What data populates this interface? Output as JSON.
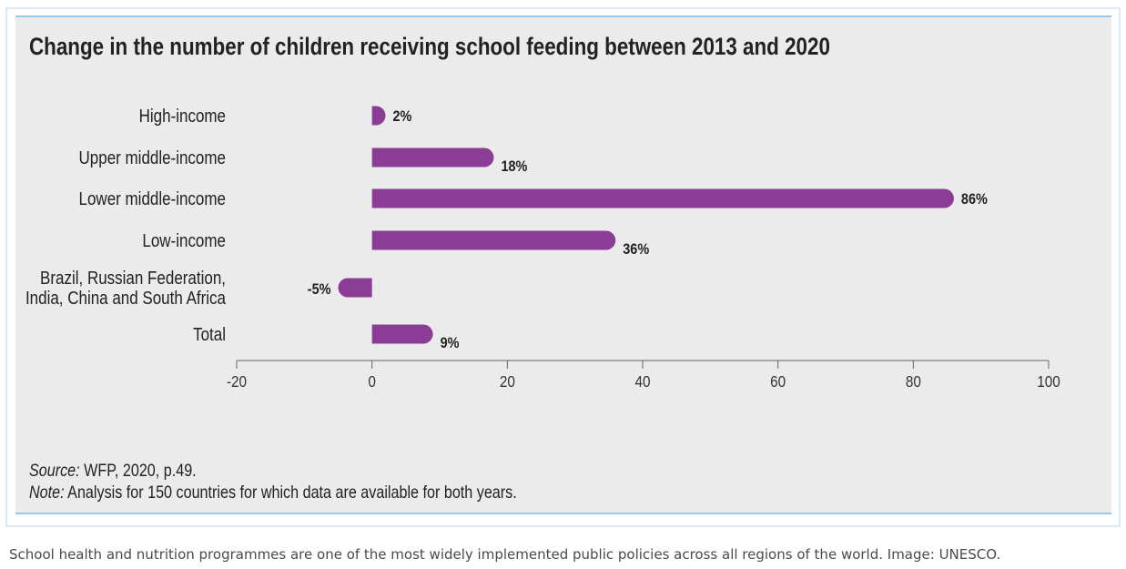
{
  "chart_data": {
    "type": "bar",
    "orientation": "horizontal",
    "title": "Change in the number of children receiving school feeding between 2013 and 2020",
    "categories": [
      [
        "High-income"
      ],
      [
        "Upper middle-income"
      ],
      [
        "Lower middle-income"
      ],
      [
        "Low-income"
      ],
      [
        "Brazil, Russian Federation,",
        "India, China and South Africa"
      ],
      [
        "Total"
      ]
    ],
    "values": [
      2,
      18,
      86,
      36,
      -5,
      9
    ],
    "data_labels": [
      "2%",
      "18%",
      "86%",
      "36%",
      "-5%",
      "9%"
    ],
    "xlim": [
      -20,
      100
    ],
    "xticks": [
      -20,
      0,
      20,
      40,
      60,
      80,
      100
    ],
    "grid": false,
    "bar_color": "#8b3d96",
    "source_label": "Source:",
    "source_text": " WFP, 2020, p.49.",
    "note_label": "Note:",
    "note_text": " Analysis for 150 countries for which data are available for both years."
  },
  "caption": "School health and nutrition programmes are one of the most widely implemented public policies across all regions of the world. Image: UNESCO."
}
